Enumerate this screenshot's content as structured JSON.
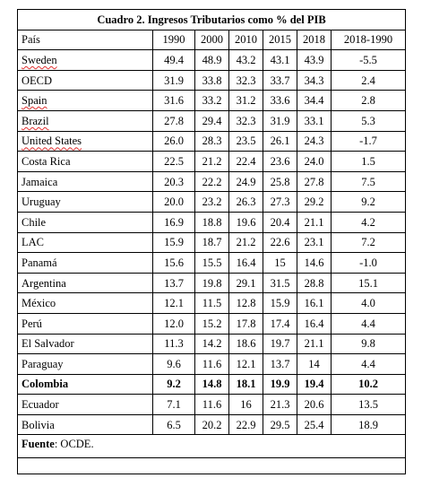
{
  "title": "Cuadro 2. Ingresos Tributarios como % del PIB",
  "headers": [
    "País",
    "1990",
    "2000",
    "2010",
    "2015",
    "2018",
    "2018-1990"
  ],
  "rows": [
    {
      "country": "Sweden",
      "values": [
        "49.4",
        "48.9",
        "43.2",
        "43.1",
        "43.9",
        "-5.5"
      ],
      "spellcheck": true,
      "bold": false
    },
    {
      "country": "OECD",
      "values": [
        "31.9",
        "33.8",
        "32.3",
        "33.7",
        "34.3",
        "2.4"
      ],
      "spellcheck": false,
      "bold": false
    },
    {
      "country": "Spain",
      "values": [
        "31.6",
        "33.2",
        "31.2",
        "33.6",
        "34.4",
        "2.8"
      ],
      "spellcheck": true,
      "bold": false
    },
    {
      "country": "Brazil",
      "values": [
        "27.8",
        "29.4",
        "32.3",
        "31.9",
        "33.1",
        "5.3"
      ],
      "spellcheck": true,
      "bold": false
    },
    {
      "country": "United States",
      "values": [
        "26.0",
        "28.3",
        "23.5",
        "26.1",
        "24.3",
        "-1.7"
      ],
      "spellcheck": true,
      "bold": false
    },
    {
      "country": "Costa Rica",
      "values": [
        "22.5",
        "21.2",
        "22.4",
        "23.6",
        "24.0",
        "1.5"
      ],
      "spellcheck": false,
      "bold": false
    },
    {
      "country": "Jamaica",
      "values": [
        "20.3",
        "22.2",
        "24.9",
        "25.8",
        "27.8",
        "7.5"
      ],
      "spellcheck": false,
      "bold": false
    },
    {
      "country": "Uruguay",
      "values": [
        "20.0",
        "23.2",
        "26.3",
        "27.3",
        "29.2",
        "9.2"
      ],
      "spellcheck": false,
      "bold": false
    },
    {
      "country": "Chile",
      "values": [
        "16.9",
        "18.8",
        "19.6",
        "20.4",
        "21.1",
        "4.2"
      ],
      "spellcheck": false,
      "bold": false
    },
    {
      "country": "LAC",
      "values": [
        "15.9",
        "18.7",
        "21.2",
        "22.6",
        "23.1",
        "7.2"
      ],
      "spellcheck": false,
      "bold": false
    },
    {
      "country": "Panamá",
      "values": [
        "15.6",
        "15.5",
        "16.4",
        "15",
        "14.6",
        "-1.0"
      ],
      "spellcheck": false,
      "bold": false
    },
    {
      "country": "Argentina",
      "values": [
        "13.7",
        "19.8",
        "29.1",
        "31.5",
        "28.8",
        "15.1"
      ],
      "spellcheck": false,
      "bold": false
    },
    {
      "country": "México",
      "values": [
        "12.1",
        "11.5",
        "12.8",
        "15.9",
        "16.1",
        "4.0"
      ],
      "spellcheck": false,
      "bold": false
    },
    {
      "country": "Perú",
      "values": [
        "12.0",
        "15.2",
        "17.8",
        "17.4",
        "16.4",
        "4.4"
      ],
      "spellcheck": false,
      "bold": false
    },
    {
      "country": "El Salvador",
      "values": [
        "11.3",
        "14.2",
        "18.6",
        "19.7",
        "21.1",
        "9.8"
      ],
      "spellcheck": false,
      "bold": false
    },
    {
      "country": "Paraguay",
      "values": [
        "9.6",
        "11.6",
        "12.1",
        "13.7",
        "14",
        "4.4"
      ],
      "spellcheck": false,
      "bold": false
    },
    {
      "country": "Colombia",
      "values": [
        "9.2",
        "14.8",
        "18.1",
        "19.9",
        "19.4",
        "10.2"
      ],
      "spellcheck": false,
      "bold": true
    },
    {
      "country": "Ecuador",
      "values": [
        "7.1",
        "11.6",
        "16",
        "21.3",
        "20.6",
        "13.5"
      ],
      "spellcheck": false,
      "bold": false
    },
    {
      "country": "Bolivia",
      "values": [
        "6.5",
        "20.2",
        "22.9",
        "29.5",
        "25.4",
        "18.9"
      ],
      "spellcheck": false,
      "bold": false
    }
  ],
  "footer": {
    "label": "Fuente",
    "text": ": OCDE."
  }
}
